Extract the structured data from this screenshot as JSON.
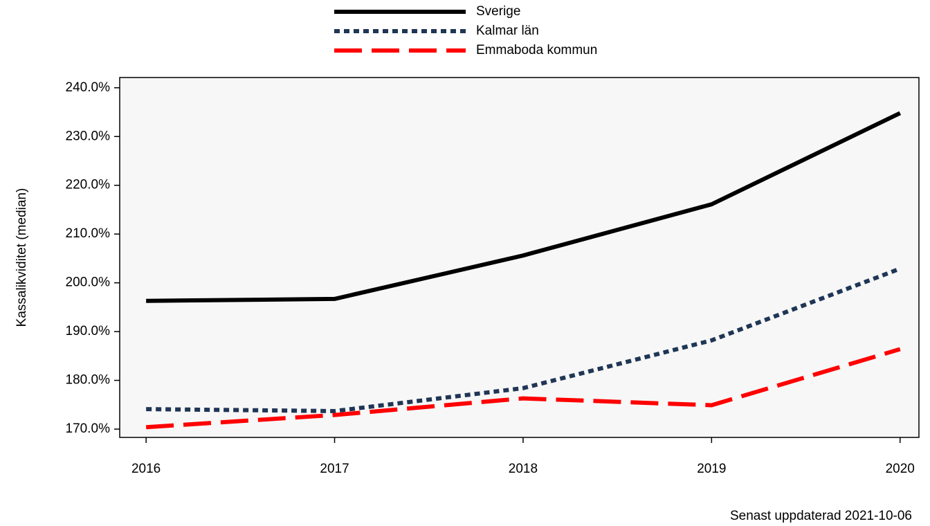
{
  "chart_data": {
    "type": "line",
    "y_label": "Kassalikviditet (median)",
    "note": "Senast uppdaterad 2021-10-06",
    "x": [
      2016,
      2017,
      2018,
      2019,
      2020
    ],
    "xlim": [
      2015.86,
      2020.1
    ],
    "xticks": [
      2016,
      2017,
      2018,
      2019,
      2020
    ],
    "ylim": [
      168.3,
      242.1
    ],
    "yticks": [
      {
        "value": 170,
        "label": "170.0%"
      },
      {
        "value": 180,
        "label": "180.0%"
      },
      {
        "value": 190,
        "label": "190.0%"
      },
      {
        "value": 200,
        "label": "200.0%"
      },
      {
        "value": 210,
        "label": "210.0%"
      },
      {
        "value": 220,
        "label": "220.0%"
      },
      {
        "value": 230,
        "label": "230.0%"
      },
      {
        "value": 240,
        "label": "240.0%"
      }
    ],
    "grid": false,
    "legend": "top",
    "series": [
      {
        "name": "Sverige",
        "color": "#000000",
        "dash": "solid",
        "values": [
          196.3,
          196.7,
          205.6,
          216.1,
          234.8
        ]
      },
      {
        "name": "Kalmar län",
        "color": "#1f3655",
        "dash": "dotted",
        "values": [
          174.1,
          173.7,
          178.4,
          188.2,
          202.9
        ]
      },
      {
        "name": "Emmaboda kommun",
        "color": "#ff0000",
        "dash": "dashed",
        "values": [
          170.4,
          172.9,
          176.3,
          174.9,
          186.4
        ]
      }
    ]
  }
}
